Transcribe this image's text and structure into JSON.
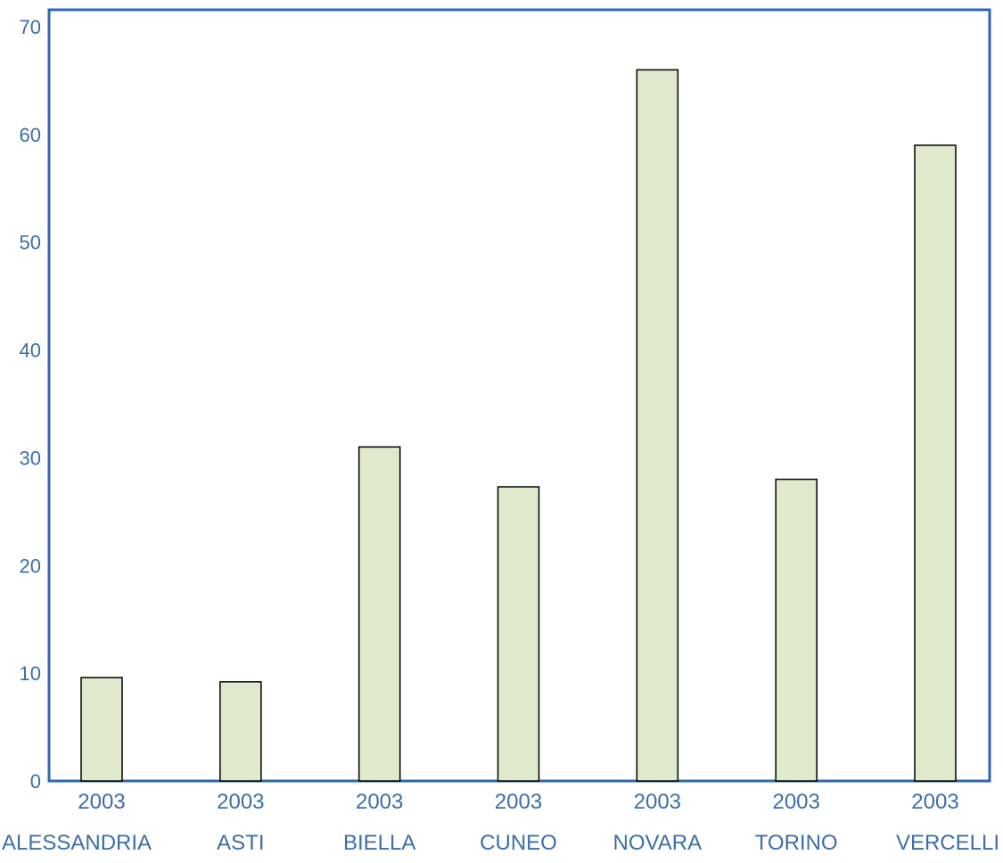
{
  "chart_data": {
    "type": "bar",
    "title": "",
    "xlabel": "",
    "ylabel": "",
    "ylim": [
      0,
      70
    ],
    "yticks": [
      0,
      10,
      20,
      30,
      40,
      50,
      60,
      70
    ],
    "grid": false,
    "categories": [
      {
        "year": "2003",
        "name": "ALESSANDRIA"
      },
      {
        "year": "2003",
        "name": "ASTI"
      },
      {
        "year": "2003",
        "name": "BIELLA"
      },
      {
        "year": "2003",
        "name": "CUNEO"
      },
      {
        "year": "2003",
        "name": "NOVARA"
      },
      {
        "year": "2003",
        "name": "TORINO"
      },
      {
        "year": "2003",
        "name": "VERCELLI"
      }
    ],
    "values": [
      9.6,
      9.2,
      31.0,
      27.3,
      66.0,
      28.0,
      59.0
    ],
    "colors": {
      "bar_fill": "#dfe9cc",
      "bar_stroke": "#000000",
      "axis": "#2f67b0",
      "text": "#3c6ea8"
    }
  }
}
